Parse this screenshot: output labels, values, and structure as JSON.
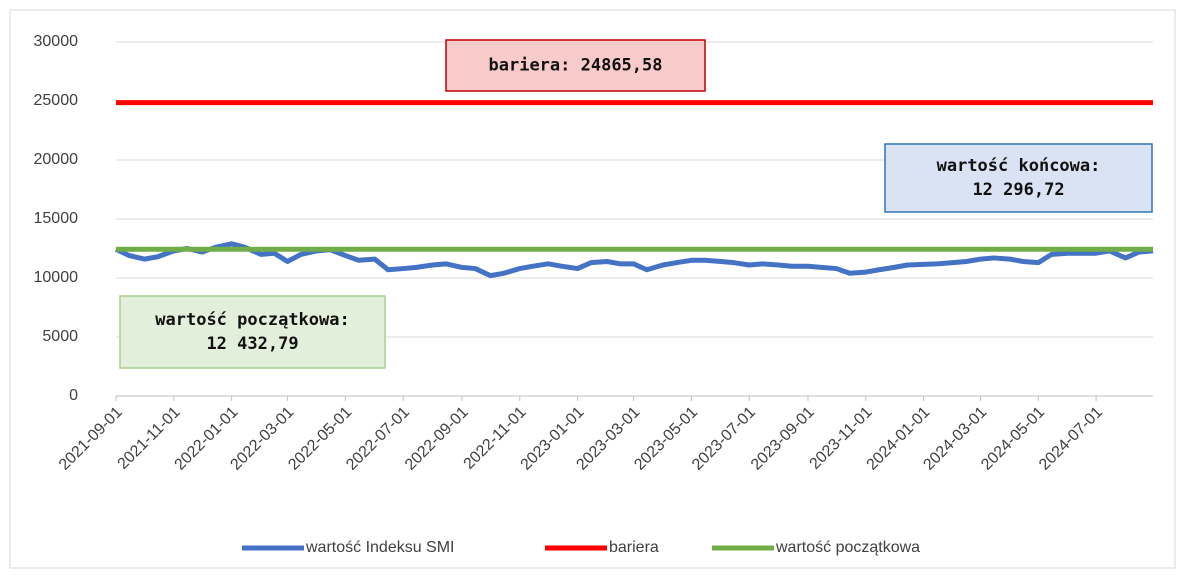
{
  "chart_data": {
    "type": "line",
    "x": [
      "2021-09-01",
      "2021-09-15",
      "2021-10-01",
      "2021-10-15",
      "2021-11-01",
      "2021-11-15",
      "2021-12-01",
      "2021-12-15",
      "2022-01-01",
      "2022-01-15",
      "2022-02-01",
      "2022-02-15",
      "2022-03-01",
      "2022-03-15",
      "2022-04-01",
      "2022-04-15",
      "2022-05-01",
      "2022-05-15",
      "2022-06-01",
      "2022-06-15",
      "2022-07-01",
      "2022-07-15",
      "2022-08-01",
      "2022-08-15",
      "2022-09-01",
      "2022-09-15",
      "2022-10-01",
      "2022-10-15",
      "2022-11-01",
      "2022-11-15",
      "2022-12-01",
      "2022-12-15",
      "2023-01-01",
      "2023-01-15",
      "2023-02-01",
      "2023-02-15",
      "2023-03-01",
      "2023-03-15",
      "2023-04-01",
      "2023-04-15",
      "2023-05-01",
      "2023-05-15",
      "2023-06-01",
      "2023-06-15",
      "2023-07-01",
      "2023-07-15",
      "2023-08-01",
      "2023-08-15",
      "2023-09-01",
      "2023-09-15",
      "2023-10-01",
      "2023-10-15",
      "2023-11-01",
      "2023-11-15",
      "2023-12-01",
      "2023-12-15",
      "2024-01-01",
      "2024-01-15",
      "2024-02-01",
      "2024-02-15",
      "2024-03-01",
      "2024-03-15",
      "2024-04-01",
      "2024-04-15",
      "2024-05-01",
      "2024-05-15",
      "2024-06-01",
      "2024-06-15",
      "2024-07-01",
      "2024-07-15",
      "2024-08-01",
      "2024-08-15",
      "2024-08-30"
    ],
    "series": [
      {
        "name": "wartość Indeksu SMI",
        "color": "#4472c4",
        "values": [
          12432.79,
          11900,
          11600,
          11800,
          12300,
          12500,
          12200,
          12600,
          12900,
          12600,
          12000,
          12100,
          11400,
          12000,
          12300,
          12400,
          11900,
          11500,
          11600,
          10700,
          10800,
          10900,
          11100,
          11200,
          10900,
          10800,
          10200,
          10400,
          10800,
          11000,
          11200,
          11000,
          10800,
          11300,
          11400,
          11200,
          11200,
          10700,
          11100,
          11300,
          11500,
          11500,
          11400,
          11300,
          11100,
          11200,
          11100,
          11000,
          11000,
          10900,
          10800,
          10400,
          10500,
          10700,
          10900,
          11100,
          11150,
          11200,
          11300,
          11400,
          11600,
          11700,
          11600,
          11400,
          11300,
          12000,
          12100,
          12100,
          12100,
          12300,
          11700,
          12200,
          12296.72
        ]
      }
    ],
    "reference_lines": [
      {
        "name": "bariera",
        "color": "#ff0000",
        "value": 24865.58
      },
      {
        "name": "wartość początkowa",
        "color": "#70ad47",
        "value": 12432.79
      }
    ],
    "annotations": [
      {
        "lines": [
          "bariera:  24865,58"
        ]
      },
      {
        "lines": [
          "wartość końcowa:",
          "12 296,72"
        ]
      },
      {
        "lines": [
          "wartość początkowa:",
          "12 432,79"
        ]
      }
    ],
    "xlim": [
      "2021-09-01",
      "2024-08-30"
    ],
    "xticks": [
      "2021-09-01",
      "2021-11-01",
      "2022-01-01",
      "2022-03-01",
      "2022-05-01",
      "2022-07-01",
      "2022-09-01",
      "2022-11-01",
      "2023-01-01",
      "2023-03-01",
      "2023-05-01",
      "2023-07-01",
      "2023-09-01",
      "2023-11-01",
      "2024-01-01",
      "2024-03-01",
      "2024-05-01",
      "2024-07-01"
    ],
    "ylim": [
      0,
      30000
    ],
    "yticks": [
      0,
      5000,
      10000,
      15000,
      20000,
      25000,
      30000
    ],
    "grid": true,
    "legend": "bottom"
  }
}
